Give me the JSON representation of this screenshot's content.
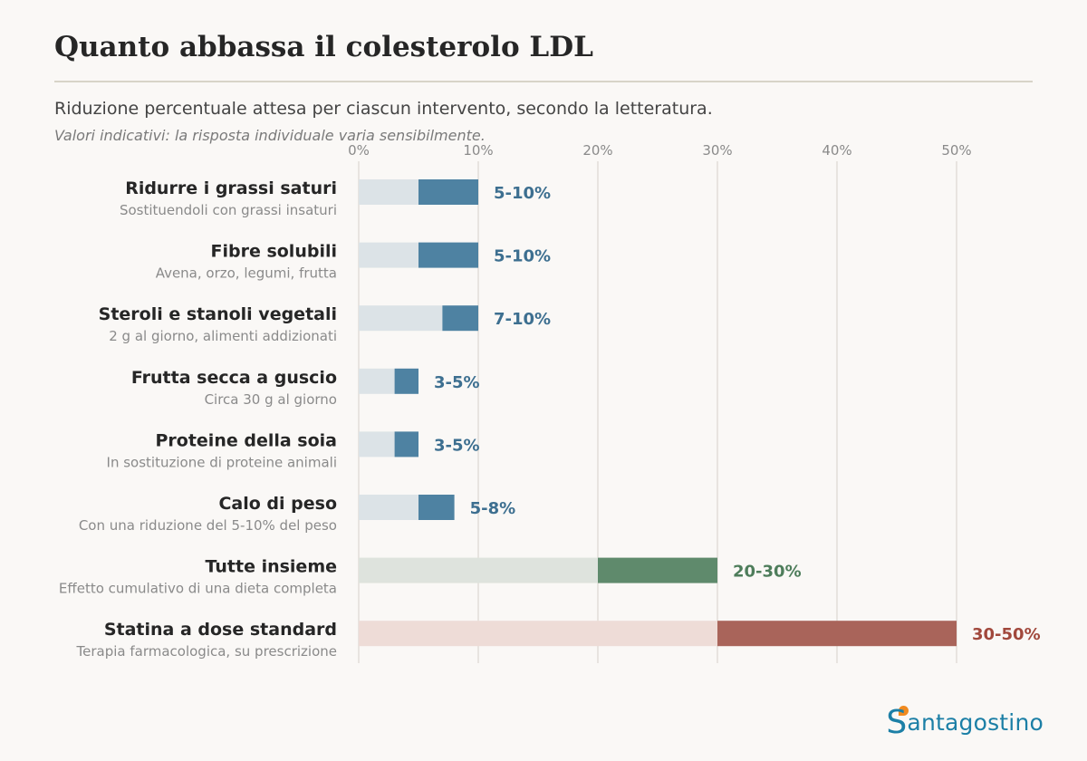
{
  "header": {
    "title": "Quanto abbassa il colesterolo LDL",
    "subtitle": "Riduzione percentuale attesa per ciascun intervento, secondo la letteratura.",
    "note": "Valori indicativi: la risposta individuale varia sensibilmente."
  },
  "brand": {
    "name": "Santagostino",
    "first_letter": "S",
    "rest": "antagostino",
    "logo_icon": "heart-dot-icon",
    "color": "#1c7fa6",
    "dot_color": "#f08a1f"
  },
  "chart_data": {
    "type": "bar",
    "orientation": "horizontal-range",
    "xlim": [
      0,
      50
    ],
    "ticks": [
      0,
      10,
      20,
      30,
      40,
      50
    ],
    "tick_labels": [
      "0%",
      "10%",
      "20%",
      "30%",
      "40%",
      "50%"
    ],
    "grid": true,
    "items": [
      {
        "label": "Ridurre i grassi saturi",
        "sublabel": "Sostituendoli con grassi insaturi",
        "min": 5,
        "max": 10,
        "value_label": "5-10%",
        "group": "food"
      },
      {
        "label": "Fibre solubili",
        "sublabel": "Avena, orzo, legumi, frutta",
        "min": 5,
        "max": 10,
        "value_label": "5-10%",
        "group": "food"
      },
      {
        "label": "Steroli e stanoli vegetali",
        "sublabel": "2 g al giorno, alimenti addizionati",
        "min": 7,
        "max": 10,
        "value_label": "7-10%",
        "group": "food"
      },
      {
        "label": "Frutta secca a guscio",
        "sublabel": "Circa 30 g al giorno",
        "min": 3,
        "max": 5,
        "value_label": "3-5%",
        "group": "food"
      },
      {
        "label": "Proteine della soia",
        "sublabel": "In sostituzione di proteine animali",
        "min": 3,
        "max": 5,
        "value_label": "3-5%",
        "group": "food"
      },
      {
        "label": "Calo di peso",
        "sublabel": "Con una riduzione del 5-10% del peso",
        "min": 5,
        "max": 8,
        "value_label": "5-8%",
        "group": "food"
      },
      {
        "label": "Tutte insieme",
        "sublabel": "Effetto cumulativo di una dieta completa",
        "min": 20,
        "max": 30,
        "value_label": "20-30%",
        "group": "combined"
      },
      {
        "label": "Statina a dose standard",
        "sublabel": "Terapia farmacologica, su prescrizione",
        "min": 30,
        "max": 50,
        "value_label": "30-50%",
        "group": "drug"
      }
    ],
    "colors": {
      "food": {
        "light": "#dce3e7",
        "dark": "#4e82a2",
        "text": "#3d6f90"
      },
      "combined": {
        "light": "#dee3dd",
        "dark": "#5f8a6c",
        "text": "#4e7d5b"
      },
      "drug": {
        "light": "#eedcd7",
        "dark": "#a9645a",
        "text": "#a1483c"
      }
    }
  }
}
